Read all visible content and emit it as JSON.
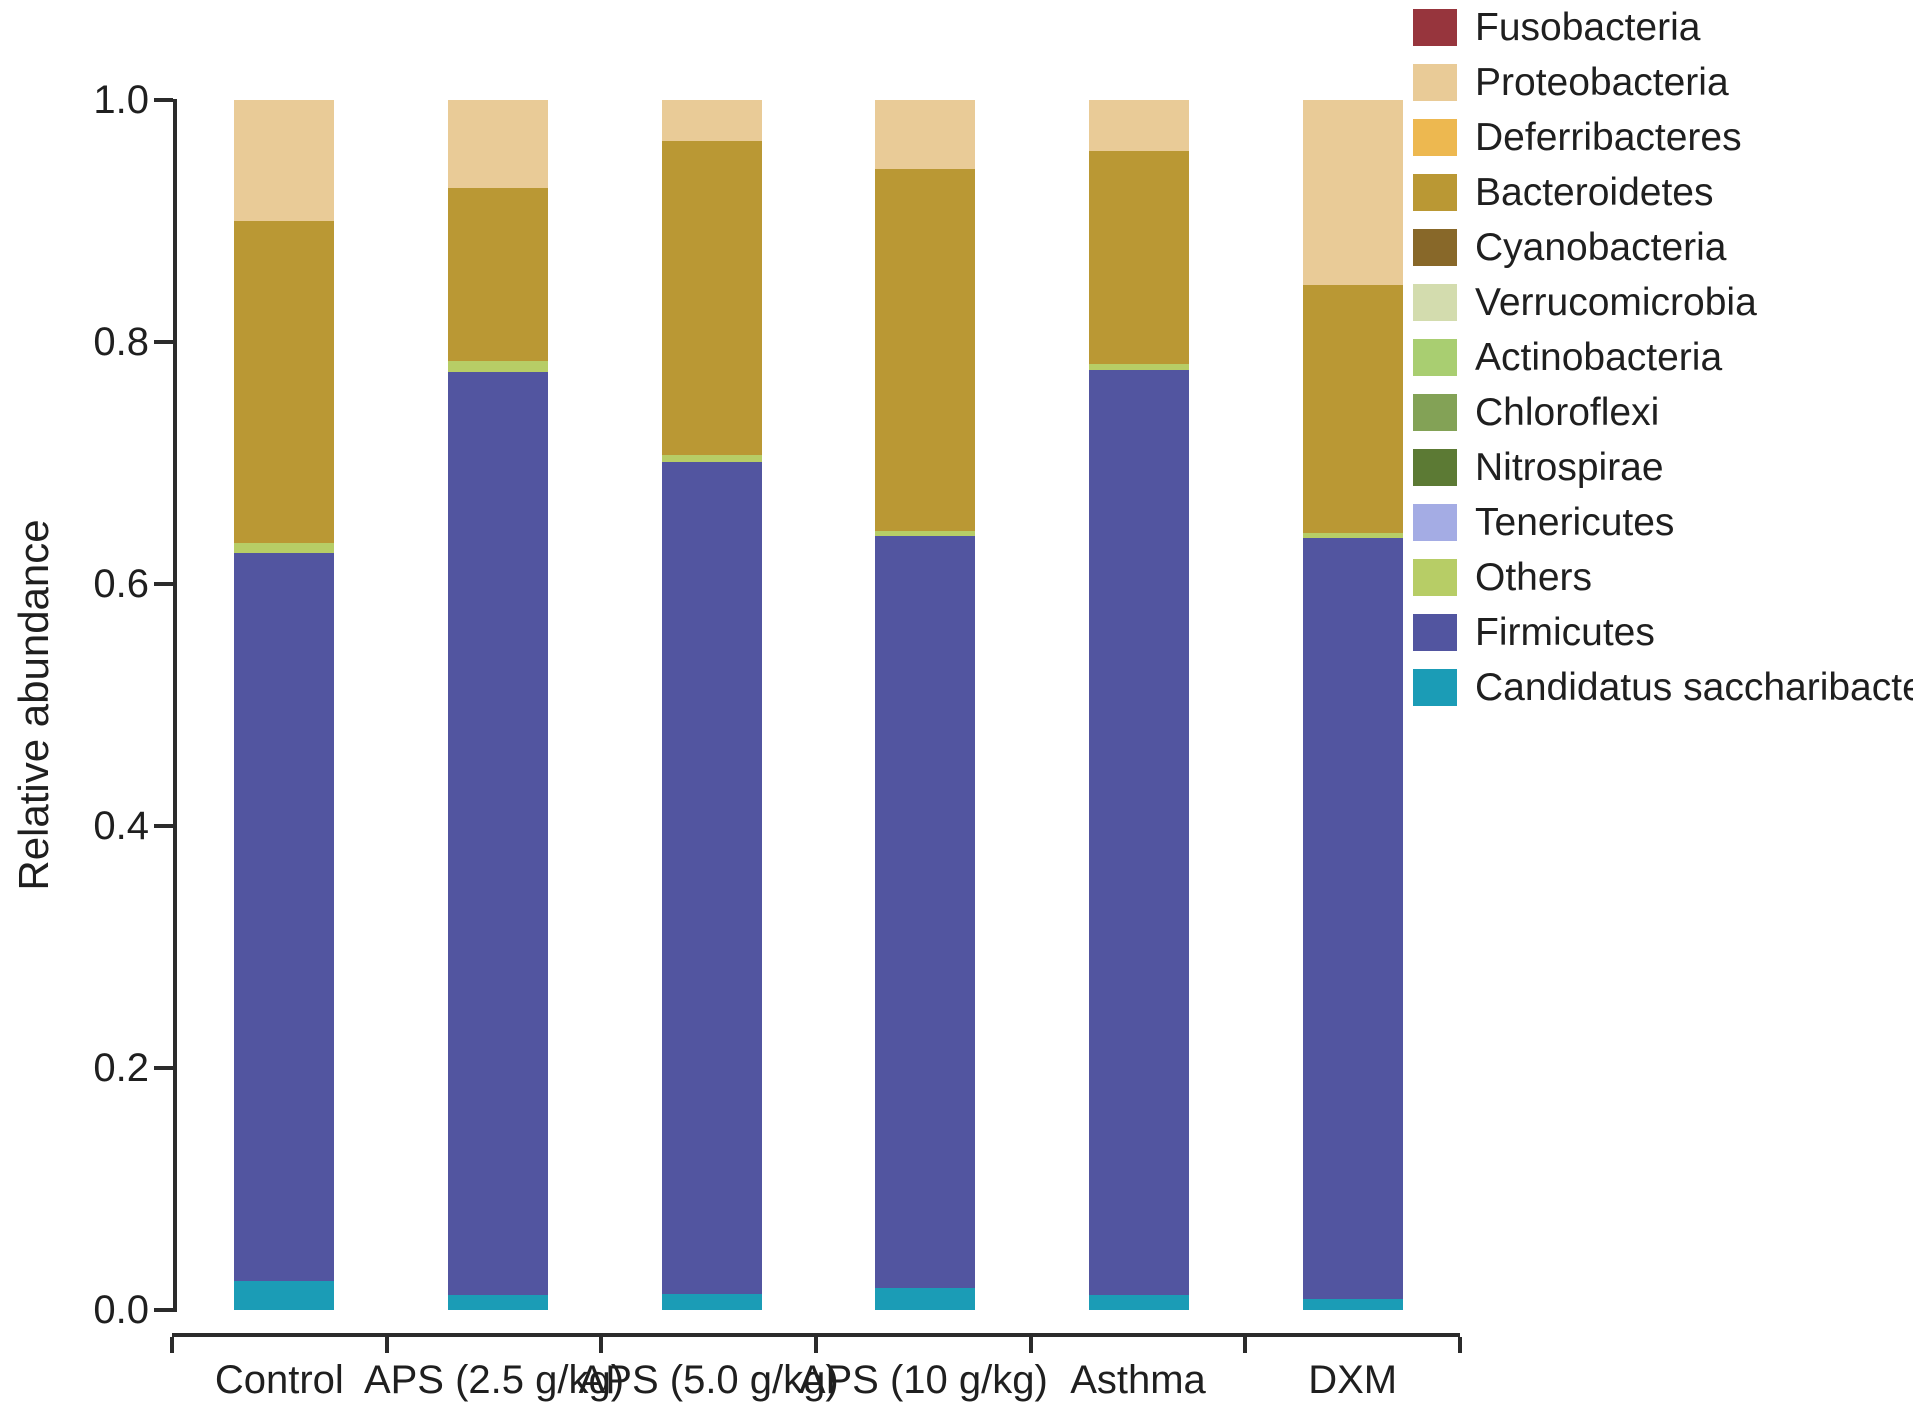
{
  "chart_data": {
    "type": "bar",
    "stacked": true,
    "title": "",
    "xlabel": "",
    "ylabel": "Relative abundance",
    "ylim": [
      0,
      1
    ],
    "yticks": [
      0.0,
      0.2,
      0.4,
      0.6,
      0.8,
      1.0
    ],
    "ytick_labels": [
      "0.0",
      "0.2",
      "0.4",
      "0.6",
      "0.8",
      "1.0"
    ],
    "grid": false,
    "legend_position": "right",
    "axis_color": "#2b2b2b",
    "text_color": "#1f1f1f",
    "categories": [
      "Control",
      "APS (2.5 g/kg)",
      "APS (5.0 g/kg)",
      "APS (10 g/kg)",
      "Asthma",
      "DXM"
    ],
    "series": [
      {
        "name": "Fusobacteria",
        "color": "#97353d",
        "values": [
          0,
          0,
          0,
          0,
          0,
          0
        ]
      },
      {
        "name": "Proteobacteria",
        "color": "#e9cb97",
        "values": [
          0.1,
          0.073,
          0.034,
          0.057,
          0.042,
          0.153
        ]
      },
      {
        "name": "Deferribacteres",
        "color": "#edb850",
        "values": [
          0,
          0,
          0,
          0,
          0,
          0
        ]
      },
      {
        "name": "Bacteroidetes",
        "color": "#ba9834",
        "values": [
          0.266,
          0.143,
          0.259,
          0.299,
          0.176,
          0.205
        ]
      },
      {
        "name": "Cyanobacteria",
        "color": "#886829",
        "values": [
          0,
          0,
          0,
          0,
          0,
          0
        ]
      },
      {
        "name": "Verrucomicrobia",
        "color": "#d3dcae",
        "values": [
          0,
          0,
          0,
          0,
          0,
          0
        ]
      },
      {
        "name": "Actinobacteria",
        "color": "#a9ce71",
        "values": [
          0,
          0,
          0,
          0,
          0,
          0
        ]
      },
      {
        "name": "Chloroflexi",
        "color": "#83a256",
        "values": [
          0,
          0,
          0,
          0,
          0,
          0
        ]
      },
      {
        "name": "Nitrospirae",
        "color": "#5c7a34",
        "values": [
          0,
          0,
          0,
          0,
          0,
          0
        ]
      },
      {
        "name": "Tenericutes",
        "color": "#a4ace4",
        "values": [
          0,
          0,
          0,
          0,
          0,
          0
        ]
      },
      {
        "name": "Others",
        "color": "#b7cd66",
        "values": [
          0.008,
          0.009,
          0.006,
          0.004,
          0.005,
          0.004
        ]
      },
      {
        "name": "Firmicutes",
        "color": "#5255a0",
        "values": [
          0.602,
          0.763,
          0.688,
          0.622,
          0.765,
          0.629
        ]
      },
      {
        "name": "Candidatus saccharibacteria",
        "color": "#1b9cb6",
        "values": [
          0.024,
          0.012,
          0.013,
          0.018,
          0.012,
          0.009
        ]
      }
    ]
  }
}
